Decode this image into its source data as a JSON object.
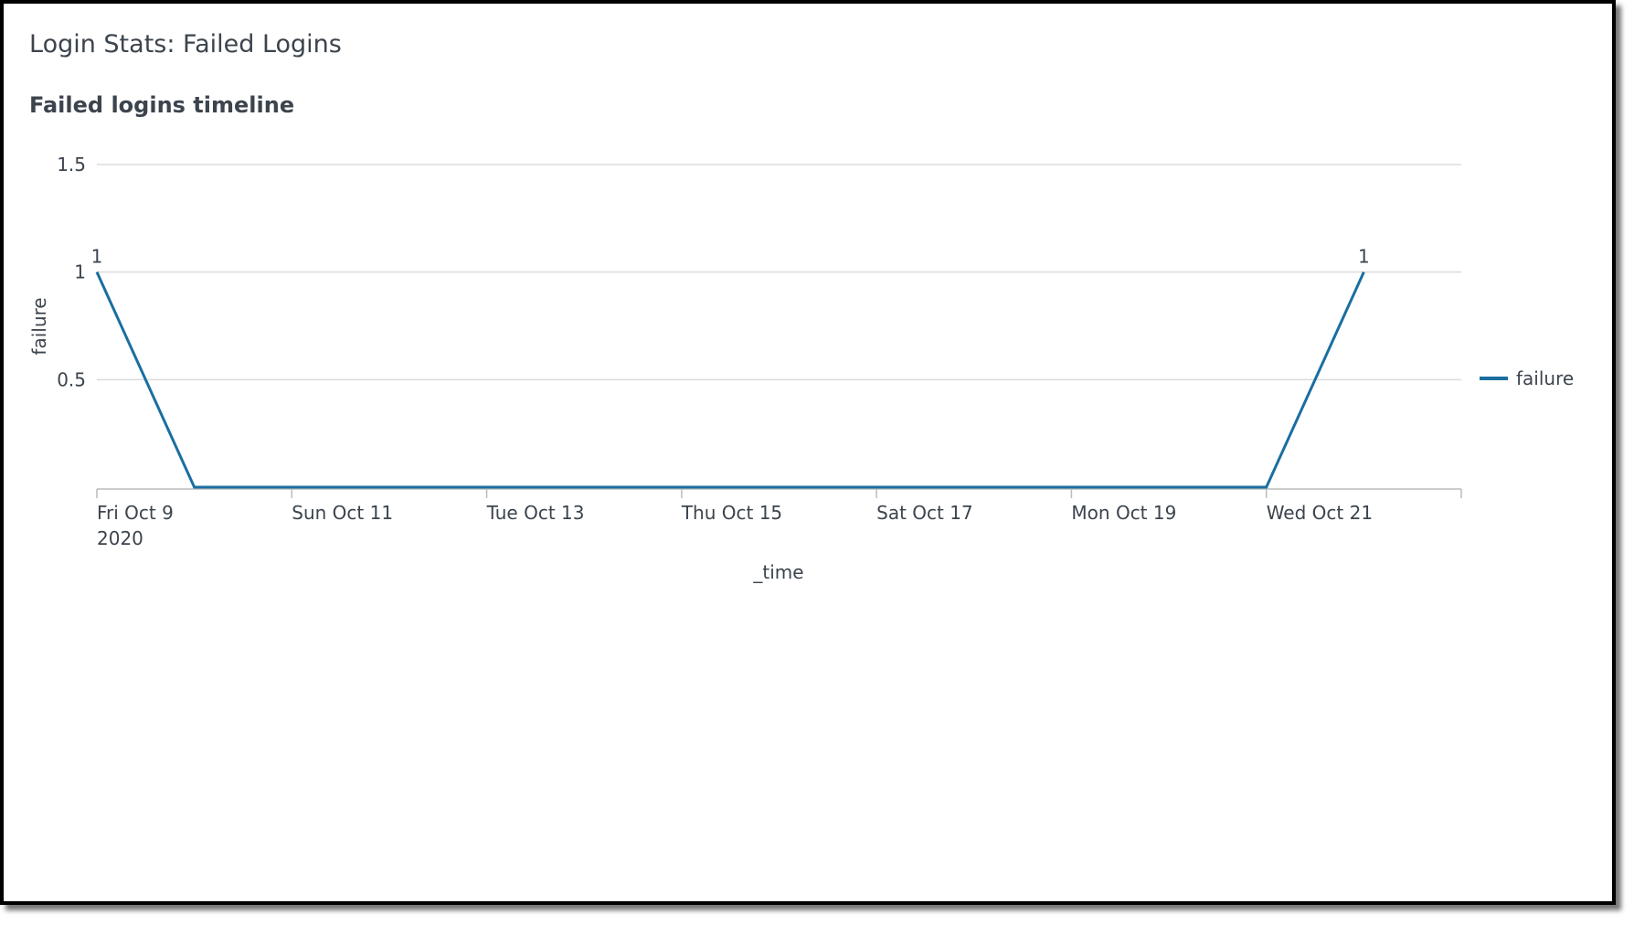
{
  "chart_data": {
    "type": "line",
    "title": "Login Stats: Failed Logins",
    "subtitle": "Failed logins timeline",
    "x_label": "_time",
    "y_label": "failure",
    "x": [
      "2020-10-09",
      "2020-10-10",
      "2020-10-11",
      "2020-10-12",
      "2020-10-13",
      "2020-10-14",
      "2020-10-15",
      "2020-10-16",
      "2020-10-17",
      "2020-10-18",
      "2020-10-19",
      "2020-10-20",
      "2020-10-21",
      "2020-10-22"
    ],
    "series": [
      {
        "name": "failure",
        "color": "#1a6ea0",
        "values": [
          1,
          0,
          0,
          0,
          0,
          0,
          0,
          0,
          0,
          0,
          0,
          0,
          0,
          1
        ]
      }
    ],
    "xlim": [
      "2020-10-09",
      "2020-10-23"
    ],
    "xticks": [
      {
        "value": "2020-10-09",
        "label": "Fri Oct 9\n2020"
      },
      {
        "value": "2020-10-11",
        "label": "Sun Oct 11"
      },
      {
        "value": "2020-10-13",
        "label": "Tue Oct 13"
      },
      {
        "value": "2020-10-15",
        "label": "Thu Oct 15"
      },
      {
        "value": "2020-10-17",
        "label": "Sat Oct 17"
      },
      {
        "value": "2020-10-19",
        "label": "Mon Oct 19"
      },
      {
        "value": "2020-10-21",
        "label": "Wed Oct 21"
      }
    ],
    "ylim": [
      0,
      1.5
    ],
    "yticks": [
      0.5,
      1,
      1.5
    ],
    "grid": true,
    "legend": "right",
    "data_labels": "max"
  }
}
